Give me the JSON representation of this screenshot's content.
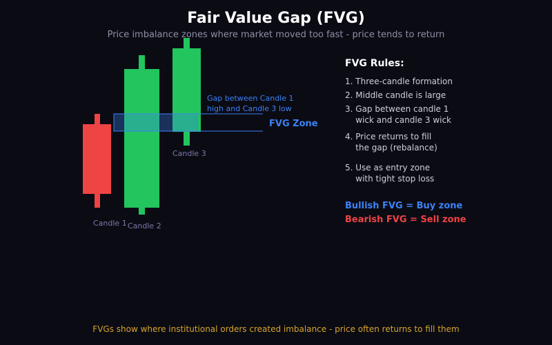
{
  "title": "Fair Value Gap (FVG)",
  "subtitle": "Price imbalance zones where market moved too fast - price tends to return",
  "colors": {
    "background": "#0b0b14",
    "bullish": "#22c55e",
    "bearish": "#ef4444",
    "zone": "#3b82f6",
    "footer": "#d6a52c"
  },
  "diagram": {
    "candles": [
      {
        "label": "Candle 1",
        "direction": "bearish"
      },
      {
        "label": "Candle 2",
        "direction": "bullish"
      },
      {
        "label": "Candle 3",
        "direction": "bullish"
      }
    ],
    "gap_annotation_line1": "Gap between Candle 1",
    "gap_annotation_line2": "high and Candle 3 low",
    "zone_label": "FVG Zone"
  },
  "rules": {
    "heading": "FVG Rules:",
    "items": [
      "1. Three-candle formation",
      "2. Middle candle is large",
      "3. Gap between candle 1\n    wick and candle 3 wick",
      "4. Price returns to fill\n    the gap (rebalance)",
      "5. Use as entry zone\n    with tight stop loss"
    ]
  },
  "legend": {
    "bullish": "Bullish FVG = Buy zone",
    "bearish": "Bearish FVG = Sell zone"
  },
  "footer": "FVGs show where institutional orders created imbalance - price often returns to fill them"
}
